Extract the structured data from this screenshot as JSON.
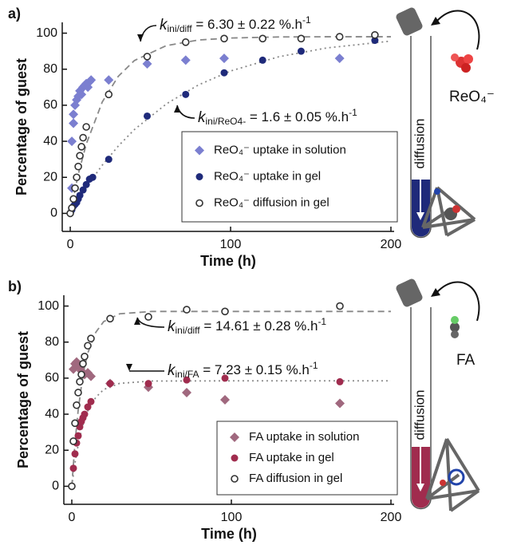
{
  "chart_data": [
    {
      "type": "scatter",
      "panel_label": "a)",
      "xlabel": "Time (h)",
      "ylabel": "Percentage of guest",
      "xlim": [
        -5,
        202
      ],
      "ylim": [
        -10,
        106
      ],
      "xticks": [
        0,
        100,
        200
      ],
      "yticks": [
        0,
        20,
        40,
        60,
        80,
        100
      ],
      "legend": "lower right",
      "series": [
        {
          "name": "ReO₄⁻ uptake in solution",
          "color": "#7b7fd0",
          "marker": "diamond",
          "x": [
            1,
            1,
            2,
            2,
            3,
            4,
            5,
            6,
            7,
            8,
            9,
            10,
            11,
            12,
            13,
            24,
            48,
            72,
            96,
            168
          ],
          "values": [
            14,
            40,
            50,
            55,
            60,
            63,
            65,
            68,
            66,
            70,
            71,
            72,
            70,
            73,
            74,
            74,
            83,
            85,
            86,
            86
          ]
        },
        {
          "name": "ReO₄⁻ uptake in gel",
          "color": "#1f2a7a",
          "marker": "filled-circle",
          "x": [
            1,
            2,
            3,
            4,
            5,
            6,
            8,
            10,
            12,
            14,
            24,
            48,
            72,
            96,
            120,
            144,
            190
          ],
          "values": [
            2,
            4,
            5,
            6,
            8,
            10,
            13,
            16,
            19,
            20,
            30,
            54,
            66,
            78,
            85,
            90,
            96
          ]
        },
        {
          "name": "ReO₄⁻ diffusion in gel",
          "color": "#333333",
          "marker": "open-circle",
          "x": [
            0,
            1,
            2,
            3,
            4,
            5,
            6,
            7,
            8,
            10,
            24,
            48,
            72,
            96,
            120,
            144,
            168,
            190
          ],
          "values": [
            0,
            3,
            8,
            14,
            20,
            26,
            32,
            37,
            42,
            48,
            66,
            87,
            95,
            97,
            97,
            97,
            98,
            99
          ]
        }
      ],
      "fits": [
        {
          "style": "dashed",
          "color": "#888888",
          "x": [
            0,
            5,
            10,
            20,
            30,
            40,
            60,
            80,
            100,
            130,
            160,
            200
          ],
          "values": [
            0,
            21.7,
            38.5,
            61.9,
            76.1,
            84.8,
            93.1,
            96.2,
            97.3,
            97.9,
            98,
            98
          ]
        },
        {
          "style": "dotted",
          "color": "#888888",
          "x": [
            0,
            5,
            10,
            20,
            30,
            40,
            60,
            80,
            100,
            130,
            160,
            200
          ],
          "values": [
            0,
            7.5,
            14.5,
            26.8,
            37.4,
            46.5,
            60.8,
            71.3,
            79.0,
            86.9,
            91.8,
            95.6
          ]
        }
      ],
      "annotations": [
        {
          "k": "k",
          "subscript": "ini/diff",
          "text": " = 6.30 ± 0.22 %.h",
          "superscript": "-1"
        },
        {
          "k": "k",
          "subscript": "ini/ReO4-",
          "text": " = 1.6 ± 0.05 %.h",
          "superscript": "-1"
        }
      ],
      "guest_label": "ReO₄⁻",
      "diffusion_label": "diffusion"
    },
    {
      "type": "scatter",
      "panel_label": "b)",
      "xlabel": "Time (h)",
      "ylabel": "Percentage of guest",
      "xlim": [
        -5,
        202
      ],
      "ylim": [
        -10,
        106
      ],
      "xticks": [
        0,
        100,
        200
      ],
      "yticks": [
        0,
        20,
        40,
        60,
        80,
        100
      ],
      "legend": "lower right",
      "series": [
        {
          "name": "FA uptake in solution",
          "color": "#a0687e",
          "marker": "diamond",
          "x": [
            1,
            2,
            3,
            4,
            5,
            6,
            8,
            10,
            12,
            24,
            48,
            72,
            96,
            168
          ],
          "values": [
            65,
            68,
            69,
            67,
            66,
            64,
            62,
            63,
            61,
            57,
            55,
            52,
            48,
            46
          ]
        },
        {
          "name": "FA uptake in gel",
          "color": "#a02c4e",
          "marker": "filled-circle",
          "x": [
            0,
            1,
            2,
            3,
            4,
            5,
            6,
            7,
            8,
            10,
            12,
            24,
            48,
            72,
            96,
            168
          ],
          "values": [
            0,
            10,
            18,
            24,
            28,
            33,
            36,
            38,
            40,
            44,
            47,
            57,
            57,
            59,
            60,
            58
          ]
        },
        {
          "name": "FA diffusion in gel",
          "color": "#333333",
          "marker": "open-circle",
          "x": [
            0,
            1,
            2,
            3,
            4,
            5,
            6,
            7,
            8,
            10,
            12,
            24,
            48,
            72,
            96,
            168
          ],
          "values": [
            0,
            25,
            35,
            45,
            52,
            58,
            62,
            68,
            72,
            78,
            82,
            93,
            94,
            98,
            97,
            100
          ]
        }
      ],
      "fits": [
        {
          "style": "dashed",
          "color": "#888888",
          "x": [
            0,
            2,
            4,
            6,
            8,
            10,
            15,
            20,
            30,
            50,
            100,
            200
          ],
          "values": [
            0,
            24.1,
            42.3,
            55.5,
            66.4,
            73.9,
            85.4,
            91.4,
            95.7,
            97,
            97,
            97
          ]
        },
        {
          "style": "dotted",
          "color": "#888888",
          "x": [
            0,
            2,
            4,
            6,
            8,
            10,
            15,
            20,
            30,
            50,
            100,
            200
          ],
          "values": [
            0,
            12.9,
            23.0,
            30.9,
            37.0,
            41.8,
            49.3,
            53.7,
            57.1,
            58.4,
            58.5,
            58.5
          ]
        }
      ],
      "annotations": [
        {
          "k": "k",
          "subscript": "ini/diff",
          "text": " = 14.61 ± 0.28 %.h",
          "superscript": "-1"
        },
        {
          "k": "k",
          "subscript": "ini/FA",
          "text": " = 7.23 ± 0.15 %.h",
          "superscript": "-1"
        }
      ],
      "guest_label": "FA",
      "diffusion_label": "diffusion"
    }
  ]
}
